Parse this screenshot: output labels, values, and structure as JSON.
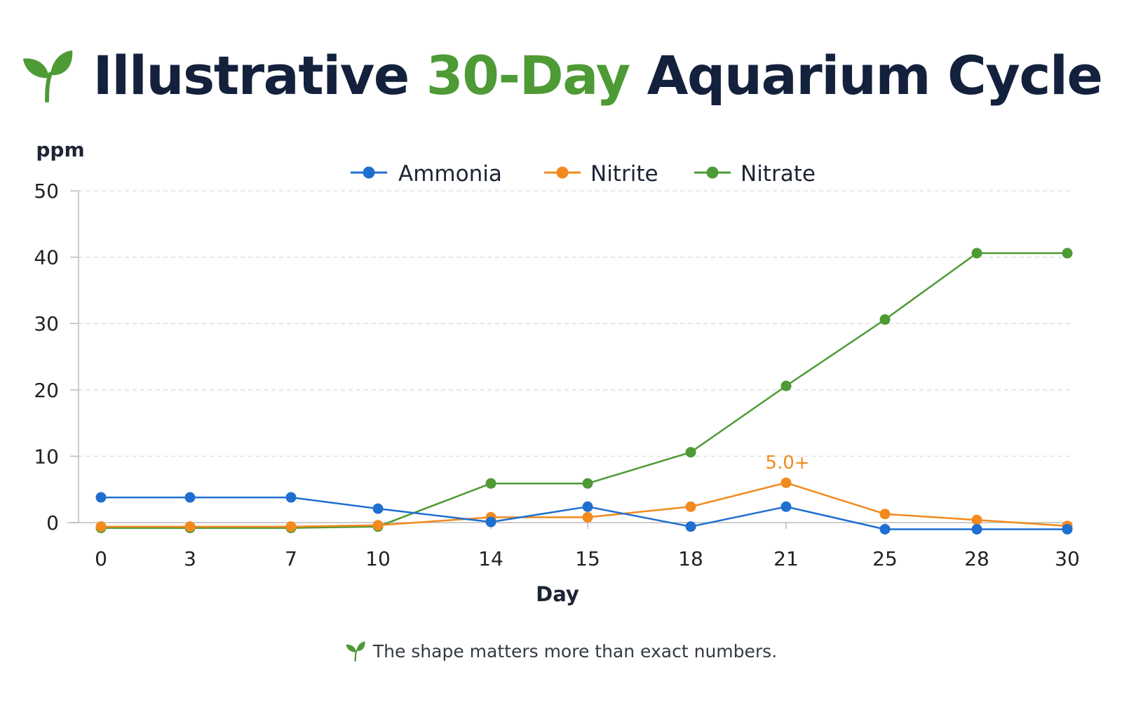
{
  "title": {
    "part1": "Illustrative ",
    "accent": "30-Day",
    "part2": " Aquarium Cycle",
    "icon": "sprout-icon"
  },
  "footnote": {
    "text": "The shape matters more than exact numbers.",
    "icon": "sprout-icon"
  },
  "colors": {
    "title": "#14213d",
    "accent": "#4e9a35",
    "ammonia": "#1f6fd0",
    "nitrite": "#f28a1e",
    "nitrate": "#4e9a35",
    "grid": "#dddddd",
    "axis": "#bbbbbb"
  },
  "chart_data": {
    "type": "line",
    "title": "Illustrative 30-Day Aquarium Cycle",
    "xlabel": "Day",
    "ylabel": "ppm",
    "x": [
      0,
      3,
      7,
      10,
      14,
      15,
      18,
      21,
      25,
      28,
      30
    ],
    "x_tick_labels": [
      "0",
      "3",
      "7",
      "10",
      "14",
      "15",
      "18",
      "21",
      "25",
      "28",
      "30"
    ],
    "y_ticks": [
      0,
      10,
      20,
      30,
      40,
      50
    ],
    "ylim": [
      0,
      50
    ],
    "grid": "horizontal dashed",
    "legend_position": "top-center",
    "series": [
      {
        "name": "Ammonia",
        "color": "#1f6fd0",
        "values": [
          3.8,
          3.8,
          3.8,
          2.1,
          0.1,
          2.4,
          -0.6,
          2.4,
          -1.0,
          -1.0,
          -1.0
        ]
      },
      {
        "name": "Nitrite",
        "color": "#f28a1e",
        "values": [
          -0.6,
          -0.6,
          -0.6,
          -0.4,
          0.8,
          0.8,
          2.4,
          6.0,
          1.3,
          0.4,
          -0.5
        ]
      },
      {
        "name": "Nitrate",
        "color": "#4e9a35",
        "values": [
          -0.8,
          -0.8,
          -0.8,
          -0.6,
          5.9,
          5.9,
          10.6,
          20.6,
          30.6,
          40.6,
          40.6
        ]
      }
    ],
    "annotations": [
      {
        "text": "5.0+",
        "series": "Nitrite",
        "x": 21
      }
    ]
  }
}
